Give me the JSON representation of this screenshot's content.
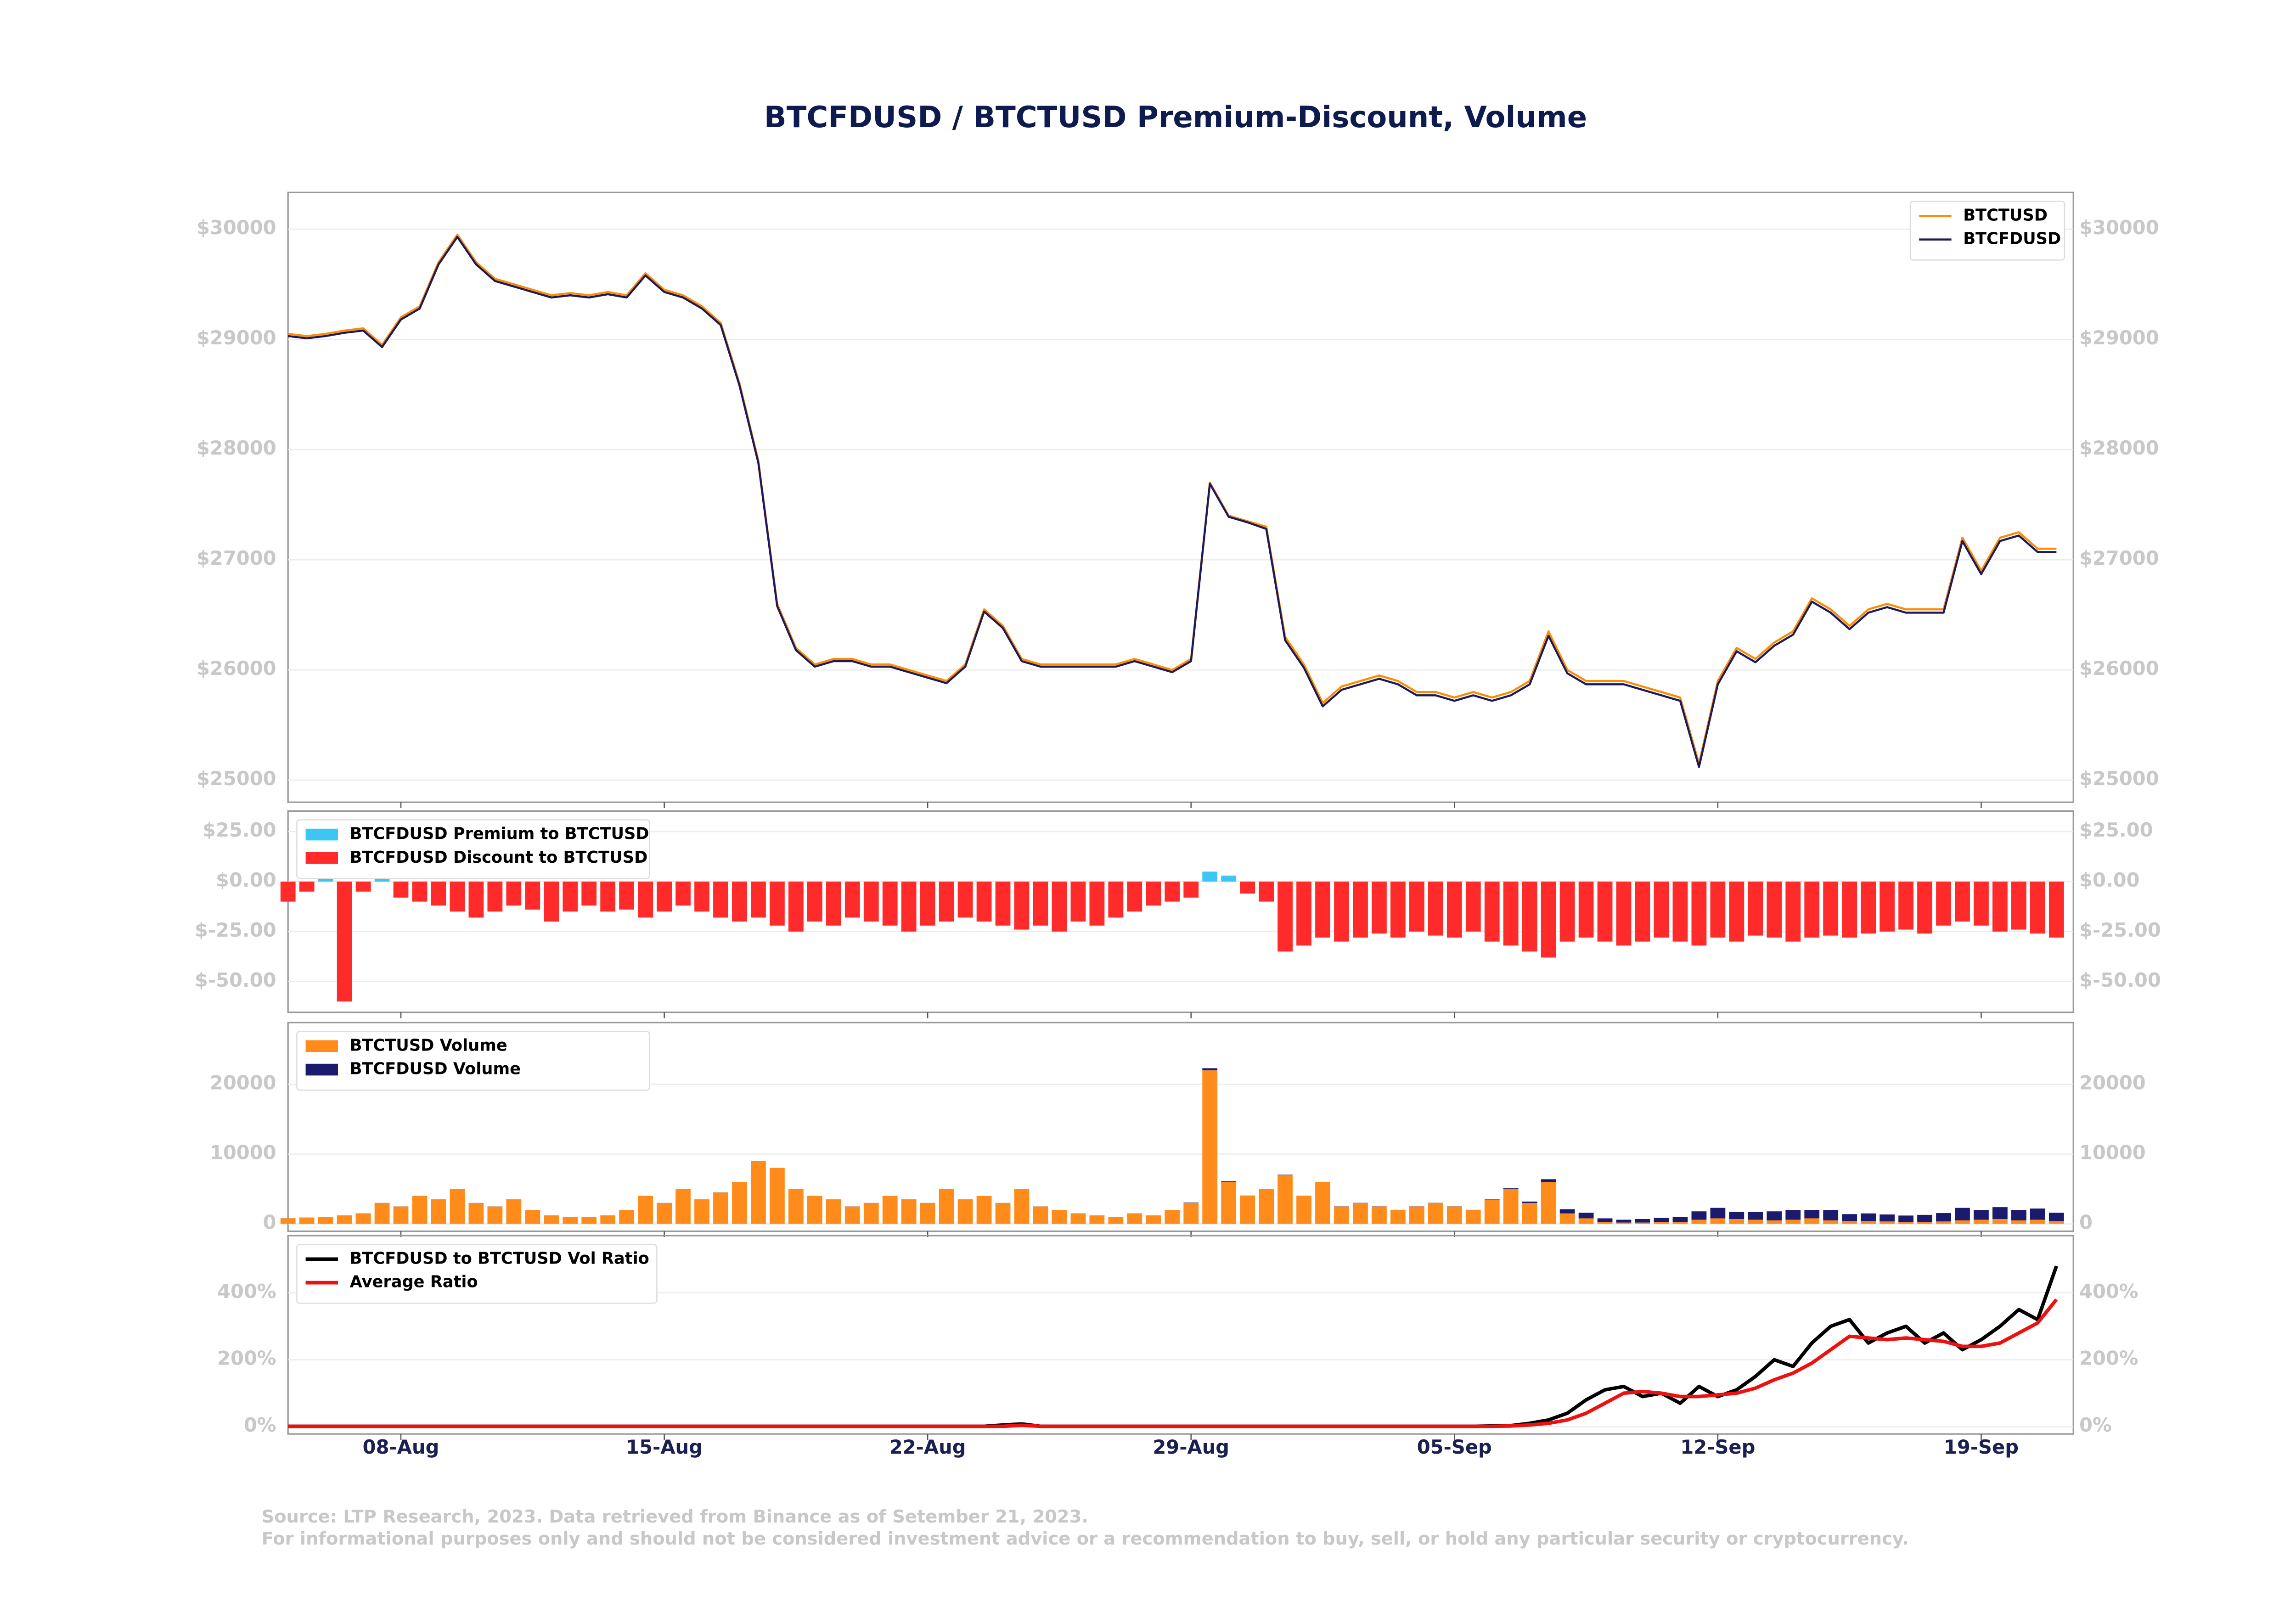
{
  "title": "BTCFDUSD / BTCTUSD Premium-Discount, Volume",
  "notes": [
    "Source: LTP Research, 2023. Data retrieved from Binance as of Setember 21, 2023.",
    "For informational purposes only and should not be considered investment advice or a recommendation to buy, sell, or hold any particular security or cryptocurrency."
  ],
  "chart_data": [
    {
      "type": "line",
      "legend": "upper right",
      "grid": true,
      "ylim": [
        24800,
        30333
      ],
      "yticks": [
        {
          "value": 25000,
          "label": "$25000"
        },
        {
          "value": 26000,
          "label": "$26000"
        },
        {
          "value": 27000,
          "label": "$27000"
        },
        {
          "value": 28000,
          "label": "$28000"
        },
        {
          "value": 29000,
          "label": "$29000"
        },
        {
          "value": 30000,
          "label": "$30000"
        }
      ],
      "series": [
        {
          "name": "BTCTUSD",
          "color": "#ff8c00",
          "values": [
            29050,
            29030,
            29050,
            29080,
            29100,
            28950,
            29200,
            29300,
            29700,
            29950,
            29700,
            29550,
            29500,
            29450,
            29400,
            29420,
            29400,
            29430,
            29400,
            29600,
            29450,
            29400,
            29300,
            29150,
            28600,
            27900,
            26600,
            26200,
            26050,
            26100,
            26100,
            26050,
            26050,
            26000,
            25950,
            25900,
            26050,
            26550,
            26400,
            26100,
            26050,
            26050,
            26050,
            26050,
            26050,
            26100,
            26050,
            26000,
            26100,
            27700,
            27400,
            27350,
            27300,
            26300,
            26050,
            25700,
            25850,
            25900,
            25950,
            25900,
            25800,
            25800,
            25750,
            25800,
            25750,
            25800,
            25900,
            26350,
            26000,
            25900,
            25900,
            25900,
            25850,
            25800,
            25750,
            25150,
            25900,
            26200,
            26100,
            26250,
            26350,
            26650,
            26550,
            26400,
            26550,
            26600,
            26550,
            26550,
            26550,
            27200,
            26900,
            27200,
            27250,
            27100,
            27100
          ]
        },
        {
          "name": "BTCFDUSD",
          "color": "#1c1a5e",
          "values": [
            29030,
            29010,
            29030,
            29060,
            29080,
            28930,
            29180,
            29280,
            29680,
            29930,
            29680,
            29530,
            29480,
            29430,
            29380,
            29400,
            29380,
            29410,
            29380,
            29580,
            29430,
            29380,
            29280,
            29130,
            28580,
            27880,
            26580,
            26180,
            26030,
            26080,
            26080,
            26030,
            26030,
            25980,
            25930,
            25880,
            26030,
            26530,
            26380,
            26080,
            26030,
            26030,
            26030,
            26030,
            26030,
            26080,
            26030,
            25980,
            26080,
            27690,
            27390,
            27340,
            27280,
            26270,
            26020,
            25670,
            25820,
            25870,
            25920,
            25870,
            25770,
            25770,
            25720,
            25770,
            25720,
            25770,
            25870,
            26310,
            25970,
            25870,
            25870,
            25870,
            25820,
            25770,
            25720,
            25120,
            25870,
            26170,
            26070,
            26220,
            26320,
            26620,
            26520,
            26370,
            26520,
            26570,
            26520,
            26520,
            26520,
            27170,
            26870,
            27170,
            27220,
            27070,
            27070
          ]
        }
      ]
    },
    {
      "type": "diverging_bar",
      "legend": "upper left",
      "grid": true,
      "ylim": [
        -65.4,
        35.3
      ],
      "yticks": [
        {
          "value": -50,
          "label": "$-50.00"
        },
        {
          "value": -25,
          "label": "$-25.00"
        },
        {
          "value": 0,
          "label": "$0.00"
        },
        {
          "value": 25,
          "label": "$25.00"
        }
      ],
      "legend_entries": [
        {
          "name": "BTCFDUSD Premium to BTCTUSD",
          "color": "#3cc6f4"
        },
        {
          "name": "BTCFDUSD Discount to BTCTUSD",
          "color": "#ff2a2a"
        }
      ],
      "values": [
        -10,
        -5,
        2,
        -60,
        -5,
        3,
        -8,
        -10,
        -12,
        -15,
        -18,
        -15,
        -12,
        -14,
        -20,
        -15,
        -12,
        -15,
        -14,
        -18,
        -15,
        -12,
        -15,
        -18,
        -20,
        -18,
        -22,
        -25,
        -20,
        -22,
        -18,
        -20,
        -22,
        -25,
        -22,
        -20,
        -18,
        -20,
        -22,
        -24,
        -22,
        -25,
        -20,
        -22,
        -18,
        -15,
        -12,
        -10,
        -8,
        5,
        3,
        -6,
        -10,
        -35,
        -32,
        -28,
        -30,
        -28,
        -26,
        -28,
        -25,
        -27,
        -28,
        -25,
        -30,
        -32,
        -35,
        -38,
        -30,
        -28,
        -30,
        -32,
        -30,
        -28,
        -30,
        -32,
        -28,
        -30,
        -27,
        -28,
        -30,
        -28,
        -27,
        -28,
        -26,
        -25,
        -24,
        -26,
        -22,
        -20,
        -22,
        -25,
        -24,
        -26,
        -28
      ]
    },
    {
      "type": "stacked_bar",
      "legend": "upper left",
      "grid": true,
      "ylim": [
        -1050,
        28840
      ],
      "yticks": [
        0,
        10000,
        20000
      ],
      "series": [
        {
          "name": "BTCTUSD Volume",
          "color": "#ff8c1a",
          "values": [
            800,
            900,
            1000,
            1200,
            1500,
            3000,
            2500,
            4000,
            3500,
            5000,
            3000,
            2500,
            3500,
            2000,
            1200,
            1000,
            1000,
            1200,
            2000,
            4000,
            3000,
            5000,
            3500,
            4500,
            6000,
            9000,
            8000,
            5000,
            4000,
            3500,
            2500,
            3000,
            4000,
            3500,
            3000,
            5000,
            3500,
            4000,
            3000,
            5000,
            2500,
            2000,
            1500,
            1200,
            1000,
            1500,
            1200,
            2000,
            3000,
            22000,
            6000,
            4000,
            5000,
            7000,
            4000,
            6000,
            2500,
            3000,
            2500,
            2000,
            2500,
            3000,
            2500,
            2000,
            3500,
            5000,
            3000,
            6000,
            1500,
            800,
            300,
            200,
            200,
            250,
            300,
            600,
            800,
            700,
            600,
            500,
            600,
            800,
            500,
            400,
            400,
            350,
            300,
            300,
            350,
            500,
            600,
            700,
            500,
            600,
            400
          ]
        },
        {
          "name": "BTCFDUSD Volume",
          "color": "#1a1a6e",
          "values": [
            10,
            10,
            10,
            10,
            10,
            10,
            10,
            10,
            10,
            10,
            10,
            10,
            10,
            10,
            10,
            10,
            10,
            10,
            10,
            10,
            10,
            10,
            10,
            10,
            10,
            10,
            10,
            10,
            10,
            10,
            10,
            10,
            10,
            10,
            10,
            10,
            10,
            10,
            10,
            10,
            10,
            10,
            10,
            10,
            10,
            10,
            10,
            10,
            50,
            300,
            100,
            50,
            30,
            50,
            30,
            30,
            20,
            20,
            20,
            20,
            20,
            20,
            20,
            20,
            50,
            100,
            200,
            400,
            600,
            800,
            500,
            400,
            500,
            600,
            700,
            1200,
            1500,
            1000,
            1100,
            1300,
            1400,
            1200,
            1500,
            1000,
            1100,
            1000,
            900,
            1000,
            1200,
            1800,
            1400,
            1700,
            1500,
            1600,
            1200
          ]
        }
      ]
    },
    {
      "type": "line",
      "legend": "upper left",
      "grid": true,
      "ylim": [
        -22,
        571
      ],
      "yticks": [
        {
          "value": 0,
          "label": "0%"
        },
        {
          "value": 200,
          "label": "200%"
        },
        {
          "value": 400,
          "label": "400%"
        }
      ],
      "categories": [
        null,
        null,
        null,
        null,
        null,
        null,
        "08-Aug",
        null,
        null,
        null,
        null,
        null,
        null,
        null,
        null,
        null,
        null,
        null,
        null,
        null,
        "15-Aug",
        null,
        null,
        null,
        null,
        null,
        null,
        null,
        null,
        null,
        null,
        null,
        null,
        null,
        "22-Aug",
        null,
        null,
        null,
        null,
        null,
        null,
        null,
        null,
        null,
        null,
        null,
        null,
        null,
        "29-Aug",
        null,
        null,
        null,
        null,
        null,
        null,
        null,
        null,
        null,
        null,
        null,
        null,
        null,
        "05-Sep",
        null,
        null,
        null,
        null,
        null,
        null,
        null,
        null,
        null,
        null,
        null,
        null,
        null,
        "12-Sep",
        null,
        null,
        null,
        null,
        null,
        null,
        null,
        null,
        null,
        null,
        null,
        null,
        null,
        "19-Sep",
        null,
        null,
        null,
        null
      ],
      "series": [
        {
          "name": "BTCFDUSD to BTCTUSD Vol Ratio",
          "color": "#000000",
          "values": [
            1,
            1,
            1,
            1,
            1,
            1,
            1,
            1,
            1,
            1,
            1,
            1,
            1,
            1,
            1,
            1,
            1,
            1,
            1,
            1,
            1,
            1,
            1,
            1,
            1,
            1,
            1,
            1,
            1,
            1,
            1,
            1,
            1,
            1,
            1,
            1,
            1,
            1,
            5,
            8,
            1,
            1,
            1,
            1,
            1,
            1,
            1,
            1,
            1,
            1,
            1,
            1,
            1,
            1,
            1,
            1,
            1,
            1,
            1,
            1,
            1,
            1,
            1,
            1,
            2,
            3,
            10,
            20,
            40,
            80,
            110,
            120,
            90,
            100,
            70,
            120,
            90,
            110,
            150,
            200,
            180,
            250,
            300,
            320,
            250,
            280,
            300,
            250,
            280,
            230,
            260,
            300,
            350,
            320,
            480
          ]
        },
        {
          "name": "Average Ratio",
          "color": "#ee1111",
          "values": [
            1,
            1,
            1,
            1,
            1,
            1,
            1,
            1,
            1,
            1,
            1,
            1,
            1,
            1,
            1,
            1,
            1,
            1,
            1,
            1,
            1,
            1,
            1,
            1,
            1,
            1,
            1,
            1,
            1,
            1,
            1,
            1,
            1,
            1,
            1,
            1,
            1,
            1,
            1,
            4,
            1,
            1,
            1,
            1,
            1,
            1,
            1,
            1,
            1,
            1,
            1,
            1,
            1,
            1,
            1,
            1,
            1,
            1,
            1,
            1,
            1,
            1,
            1,
            1,
            1,
            2,
            5,
            10,
            20,
            40,
            70,
            100,
            105,
            100,
            90,
            90,
            95,
            100,
            115,
            140,
            160,
            190,
            230,
            270,
            265,
            260,
            265,
            260,
            255,
            240,
            240,
            250,
            280,
            310,
            380
          ]
        }
      ]
    }
  ]
}
